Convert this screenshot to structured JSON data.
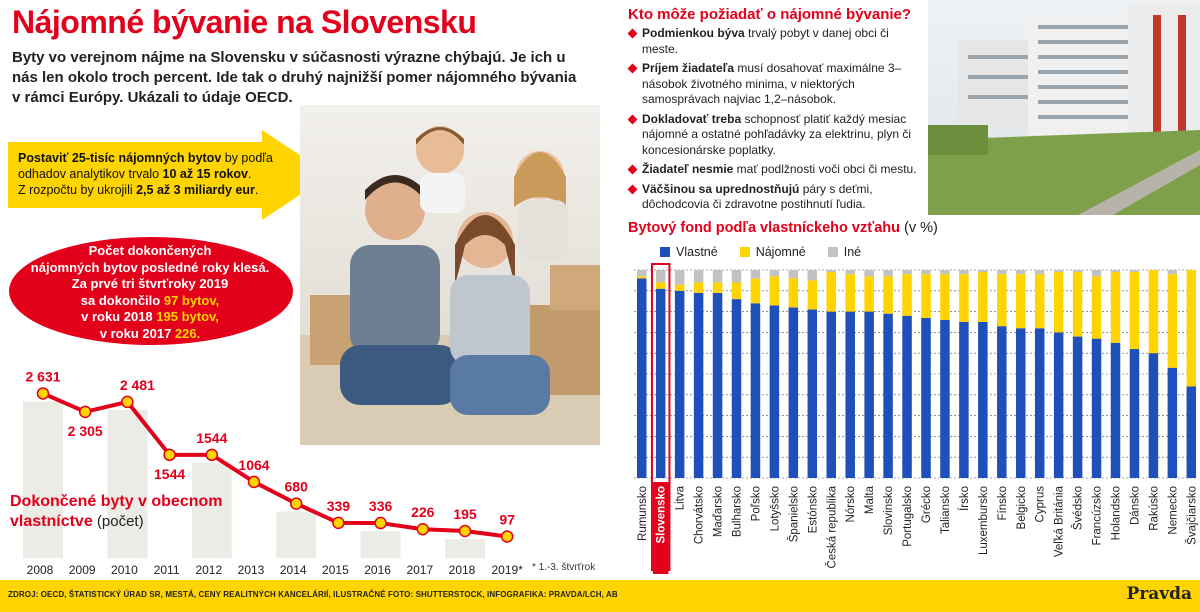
{
  "header": {
    "title": "Nájomné bývanie na Slovensku",
    "lead": "Byty vo verejnom nájme na Slovensku v súčasnosti výrazne chýbajú. Je ich u nás len okolo troch percent. Ide tak o druhý najnižší pomer nájomného bývania v rámci Európy. Ukázali to údaje OECD."
  },
  "arrow_box": {
    "p1_bold": "Postaviť 25-tisíc nájomných bytov",
    "p1_rest": " by podľa odhadov analytikov trvalo ",
    "p1_bold2": "10 až 15 rokov",
    "p1_end": ".",
    "p2_start": "Z rozpočtu by ukrojili ",
    "p2_bold": "2,5 až 3 miliardy eur",
    "p2_end": "."
  },
  "red_box": {
    "line1": "Počet dokončených",
    "line2": "nájomných bytov posledné roky klesá.",
    "line3": "Za prvé tri štvrťroky 2019",
    "line4_pre": "sa dokončilo ",
    "line4_hl": "97 bytov,",
    "line5_pre": "v roku 2018 ",
    "line5_hl": "195 bytov,",
    "line6_pre": "v roku 2017 ",
    "line6_hl": "226."
  },
  "colors": {
    "accent_red": "#e3001b",
    "accent_yellow": "#ffd400",
    "owned_blue": "#1f4fb8",
    "rental_yellow": "#ffd400",
    "other_gray": "#c2c2c2"
  },
  "kto": {
    "title": "Kto môže požiadať o nájomné bývanie?",
    "items": [
      {
        "bold": "Podmienkou býva",
        "text": " trvalý pobyt v danej obci či meste."
      },
      {
        "bold": "Príjem žiadateľa",
        "text": " musí dosahovať maximálne 3–násobok životného minima, v niektorých samosprávach najviac 1,2–násobok."
      },
      {
        "bold": "Dokladovať treba",
        "text": " schopnosť platiť každý mesiac nájomné a ostatné pohľadávky za elektrinu, plyn či koncesionárske poplatky."
      },
      {
        "bold": "Žiadateľ nesmie",
        "text": " mať podlžnosti voči obci či mestu."
      },
      {
        "bold": "Väčšinou sa uprednostňujú",
        "text": " páry s deťmi, dôchodcovia či zdravotne postihnutí ľudia."
      }
    ]
  },
  "fond": {
    "title": "Bytový fond podľa vlastníckeho vzťahu",
    "unit": " (v %)"
  },
  "line": {
    "title": "Dokončené byty v obecnom vlastníctve",
    "unit": " (počet)",
    "footnote": "* 1.-3. štvrťrok"
  },
  "footer": {
    "source": "ZDROJ: OECD, ŠTATISTICKÝ ÚRAD SR, MESTÁ, CENY REALITNÝCH KANCELÁRIÍ, ILUSTRAČNÉ FOTO: SHUTTERSTOCK, INFOGRAFIKA: PRAVDA/LCH, AB",
    "brand": "Pravda"
  },
  "chart_data": [
    {
      "type": "line",
      "title": "Dokončené byty v obecnom vlastníctve",
      "xlabel": "",
      "ylabel": "",
      "x": [
        "2008",
        "2009",
        "2010",
        "2011",
        "2012",
        "2013",
        "2014",
        "2015",
        "2016",
        "2017",
        "2018",
        "2019*"
      ],
      "values": [
        2631,
        2305,
        2481,
        1544,
        1544,
        1064,
        680,
        339,
        336,
        226,
        195,
        97
      ],
      "value_labels": [
        "2 631",
        "2 305",
        "2 481",
        "1544",
        "1544",
        "1064",
        "680",
        "339",
        "336",
        "226",
        "195",
        "97"
      ],
      "ylim": [
        0,
        2800
      ],
      "grid": false
    },
    {
      "type": "bar",
      "stacked": true,
      "title": "Bytový fond podľa vlastníckeho vzťahu",
      "ylabel": "",
      "ylim": [
        0,
        100
      ],
      "highlight": "Slovensko",
      "legend_position": "top-left",
      "categories": [
        "Rumunsko",
        "Slovensko",
        "Litva",
        "Chorvátsko",
        "Maďarsko",
        "Bulharsko",
        "Poľsko",
        "Lotyšsko",
        "Španielsko",
        "Estónsko",
        "Česká republika",
        "Nórsko",
        "Malta",
        "Slovinsko",
        "Portugalsko",
        "Grécko",
        "Taliansko",
        "Írsko",
        "Luxembursko",
        "Fínsko",
        "Belgicko",
        "Cyprus",
        "Veľká Británia",
        "Švédsko",
        "Francúzsko",
        "Holandsko",
        "Dánsko",
        "Rakúsko",
        "Nemecko",
        "Švajčiarsko"
      ],
      "series": [
        {
          "name": "Vlastné",
          "values": [
            96,
            91,
            90,
            89,
            89,
            86,
            84,
            83,
            82,
            81,
            80,
            80,
            80,
            79,
            78,
            77,
            76,
            75,
            75,
            73,
            72,
            72,
            70,
            68,
            67,
            65,
            62,
            60,
            53,
            44
          ]
        },
        {
          "name": "Nájomné",
          "values": [
            1,
            3,
            3,
            5,
            5,
            8,
            12,
            14,
            14,
            14,
            19,
            18,
            17,
            18,
            20,
            21,
            22,
            23,
            24,
            25,
            26,
            26,
            29,
            31,
            30,
            34,
            37,
            40,
            45,
            56
          ]
        },
        {
          "name": "Iné",
          "values": [
            3,
            6,
            7,
            6,
            6,
            6,
            4,
            3,
            4,
            5,
            1,
            2,
            3,
            3,
            2,
            2,
            2,
            2,
            1,
            2,
            2,
            2,
            1,
            1,
            3,
            1,
            1,
            0,
            2,
            0
          ]
        }
      ]
    }
  ]
}
